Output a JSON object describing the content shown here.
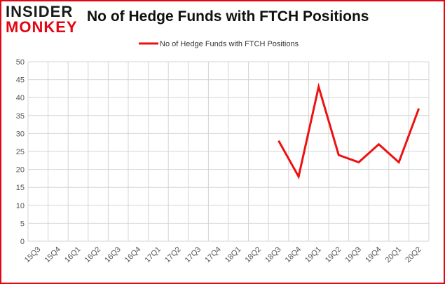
{
  "logo": {
    "line1": "INSIDER",
    "line2": "MONKEY"
  },
  "title": "No of Hedge Funds with FTCH Positions",
  "chart_data": {
    "type": "line",
    "title": "No of Hedge Funds with FTCH Positions",
    "xlabel": "",
    "ylabel": "",
    "categories": [
      "15Q3",
      "15Q4",
      "16Q1",
      "16Q2",
      "16Q3",
      "16Q4",
      "17Q1",
      "17Q2",
      "17Q3",
      "17Q4",
      "18Q1",
      "18Q2",
      "18Q3",
      "18Q4",
      "19Q1",
      "19Q2",
      "19Q3",
      "19Q4",
      "20Q1",
      "20Q2"
    ],
    "series": [
      {
        "name": "No of Hedge Funds with FTCH Positions",
        "color": "#ee1111",
        "values": [
          null,
          null,
          null,
          null,
          null,
          null,
          null,
          null,
          null,
          null,
          null,
          null,
          28,
          18,
          43,
          24,
          22,
          27,
          22,
          37
        ]
      }
    ],
    "ylim": [
      0,
      50
    ],
    "yticks": [
      0,
      5,
      10,
      15,
      20,
      25,
      30,
      35,
      40,
      45,
      50
    ],
    "grid": true,
    "legend": "top-center"
  }
}
